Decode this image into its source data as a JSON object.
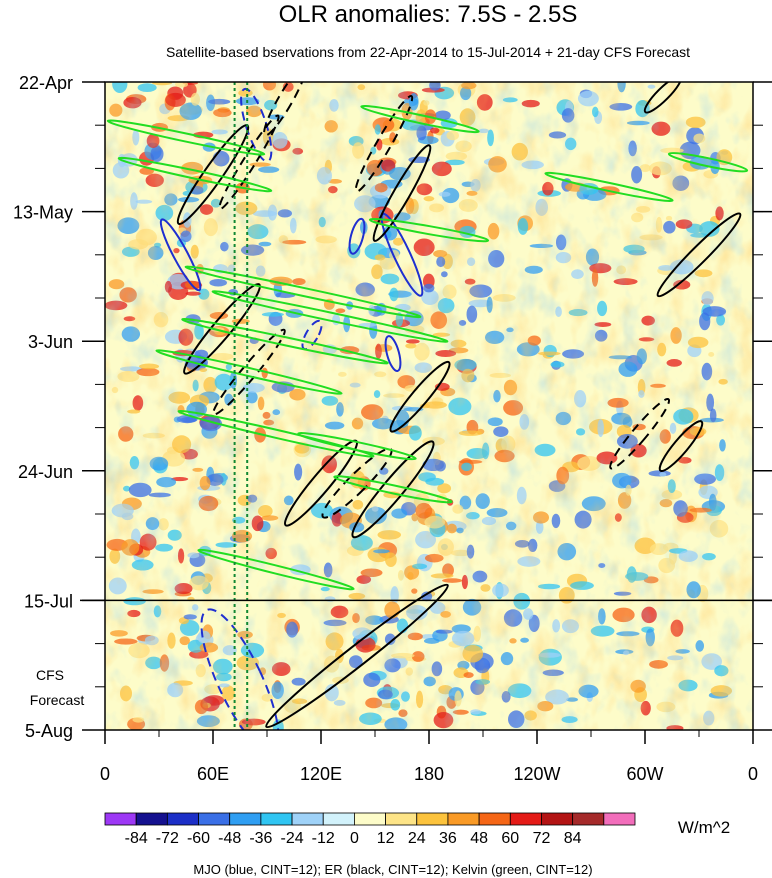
{
  "chart_data": {
    "type": "heatmap",
    "title": "OLR anomalies: 7.5S - 2.5S",
    "subtitle": "Satellite-based bservations from 22-Apr-2014 to 15-Jul-2014 + 21-day CFS Forecast",
    "x_ticks": [
      {
        "lon": 0,
        "label": "0"
      },
      {
        "lon": 60,
        "label": "60E"
      },
      {
        "lon": 120,
        "label": "120E"
      },
      {
        "lon": 180,
        "label": "180"
      },
      {
        "lon": 240,
        "label": "120W"
      },
      {
        "lon": 300,
        "label": "60W"
      },
      {
        "lon": 360,
        "label": "0"
      }
    ],
    "xlim": [
      0,
      360
    ],
    "y_ticks": [
      {
        "date": "2014-04-22",
        "label": "22-Apr"
      },
      {
        "date": "2014-05-13",
        "label": "13-May"
      },
      {
        "date": "2014-06-03",
        "label": "3-Jun"
      },
      {
        "date": "2014-06-24",
        "label": "24-Jun"
      },
      {
        "date": "2014-07-15",
        "label": "15-Jul"
      },
      {
        "date": "2014-08-05",
        "label": "5-Aug"
      }
    ],
    "ylim": [
      "2014-04-22",
      "2014-08-05"
    ],
    "forecast_start": "2014-07-15",
    "forecast_label": [
      "CFS",
      "Forecast"
    ],
    "vertical_dotted_lines_lon": [
      72,
      79
    ],
    "colorbar": {
      "labels": [
        "-84",
        "-72",
        "-60",
        "-48",
        "-36",
        "-24",
        "-12",
        "0",
        "12",
        "24",
        "36",
        "48",
        "60",
        "72",
        "84"
      ],
      "colors": [
        "#9d38f5",
        "#15118f",
        "#1c2fc7",
        "#3a6fe6",
        "#2f9ef2",
        "#30c5f2",
        "#9fd2f8",
        "#d2f2fb",
        "#fdfcc9",
        "#fde487",
        "#fcc33d",
        "#f99a26",
        "#f56616",
        "#e41b17",
        "#b31414",
        "#a52a2a",
        "#f26ebb"
      ],
      "unit": "W/m^2"
    },
    "footer": "MJO (blue, CINT=12); ER (black, CINT=12); Kelvin (green, CINT=12)",
    "contour_colors": {
      "mjo": "#1f2fd0",
      "er": "#000000",
      "kelvin": "#22dd22"
    },
    "mjo_contours": [
      {
        "lon": 42,
        "date": "2014-05-20",
        "rx": 7,
        "ry": 40,
        "angle": -28,
        "dash": false
      },
      {
        "lon": 84,
        "date": "2014-04-29",
        "rx": 10,
        "ry": 38,
        "angle": -18,
        "dash": true
      },
      {
        "lon": 140,
        "date": "2014-05-17",
        "rx": 6,
        "ry": 18,
        "angle": 15,
        "dash": false
      },
      {
        "lon": 165,
        "date": "2014-05-20",
        "rx": 8,
        "ry": 45,
        "angle": -25,
        "dash": false
      },
      {
        "lon": 160,
        "date": "2014-06-05",
        "rx": 6,
        "ry": 18,
        "angle": -15,
        "dash": false
      },
      {
        "lon": 75,
        "date": "2014-07-28",
        "rx": 22,
        "ry": 78,
        "angle": -25,
        "dash": true
      },
      {
        "lon": 115,
        "date": "2014-06-02",
        "rx": 6,
        "ry": 16,
        "angle": 30,
        "dash": true
      }
    ],
    "er_contours": [
      {
        "lon": 60,
        "date": "2014-05-07",
        "rx": 9,
        "ry": 60,
        "angle": 35,
        "dash": false
      },
      {
        "lon": 65,
        "date": "2014-06-01",
        "rx": 9,
        "ry": 58,
        "angle": 40,
        "dash": false
      },
      {
        "lon": 80,
        "date": "2014-06-08",
        "rx": 7,
        "ry": 55,
        "angle": 40,
        "dash": true
      },
      {
        "lon": 120,
        "date": "2014-06-26",
        "rx": 9,
        "ry": 55,
        "angle": 40,
        "dash": false
      },
      {
        "lon": 140,
        "date": "2014-06-26",
        "rx": 9,
        "ry": 48,
        "angle": 45,
        "dash": true
      },
      {
        "lon": 160,
        "date": "2014-06-27",
        "rx": 10,
        "ry": 62,
        "angle": 40,
        "dash": false
      },
      {
        "lon": 175,
        "date": "2014-06-12",
        "rx": 8,
        "ry": 45,
        "angle": 40,
        "dash": false
      },
      {
        "lon": 165,
        "date": "2014-05-10",
        "rx": 8,
        "ry": 55,
        "angle": 30,
        "dash": false
      },
      {
        "lon": 155,
        "date": "2014-05-02",
        "rx": 7,
        "ry": 55,
        "angle": 30,
        "dash": true
      },
      {
        "lon": 140,
        "date": "2014-07-24",
        "rx": 10,
        "ry": 115,
        "angle": 52,
        "dash": false
      },
      {
        "lon": 80,
        "date": "2014-05-05",
        "rx": 6,
        "ry": 55,
        "angle": 32,
        "dash": true
      },
      {
        "lon": 330,
        "date": "2014-05-20",
        "rx": 8,
        "ry": 58,
        "angle": 45,
        "dash": false
      },
      {
        "lon": 297,
        "date": "2014-06-18",
        "rx": 7,
        "ry": 45,
        "angle": 40,
        "dash": true
      },
      {
        "lon": 320,
        "date": "2014-06-20",
        "rx": 7,
        "ry": 32,
        "angle": 40,
        "dash": false
      },
      {
        "lon": 310,
        "date": "2014-04-24",
        "rx": 6,
        "ry": 25,
        "angle": 45,
        "dash": false
      },
      {
        "lon": 100,
        "date": "2014-04-25",
        "rx": 7,
        "ry": 40,
        "angle": 30,
        "dash": true
      }
    ],
    "kelvin_contours": [
      {
        "lon": 45,
        "date": "2014-05-01",
        "rx": 80,
        "ry": 4,
        "angle": 12
      },
      {
        "lon": 50,
        "date": "2014-05-07",
        "rx": 78,
        "ry": 4,
        "angle": 12
      },
      {
        "lon": 80,
        "date": "2014-06-08",
        "rx": 95,
        "ry": 4,
        "angle": 13
      },
      {
        "lon": 100,
        "date": "2014-06-03",
        "rx": 105,
        "ry": 4,
        "angle": 12
      },
      {
        "lon": 110,
        "date": "2014-05-26",
        "rx": 120,
        "ry": 4,
        "angle": 12
      },
      {
        "lon": 125,
        "date": "2014-05-30",
        "rx": 120,
        "ry": 4,
        "angle": 12
      },
      {
        "lon": 95,
        "date": "2014-06-18",
        "rx": 100,
        "ry": 4,
        "angle": 13
      },
      {
        "lon": 95,
        "date": "2014-07-10",
        "rx": 80,
        "ry": 4,
        "angle": 14
      },
      {
        "lon": 160,
        "date": "2014-06-27",
        "rx": 60,
        "ry": 4,
        "angle": 12
      },
      {
        "lon": 140,
        "date": "2014-06-20",
        "rx": 60,
        "ry": 4,
        "angle": 12
      },
      {
        "lon": 175,
        "date": "2014-04-28",
        "rx": 60,
        "ry": 4,
        "angle": 12
      },
      {
        "lon": 180,
        "date": "2014-05-16",
        "rx": 60,
        "ry": 4,
        "angle": 10
      },
      {
        "lon": 280,
        "date": "2014-05-09",
        "rx": 65,
        "ry": 4,
        "angle": 12
      },
      {
        "lon": 335,
        "date": "2014-05-05",
        "rx": 40,
        "ry": 4,
        "angle": 12
      }
    ]
  }
}
